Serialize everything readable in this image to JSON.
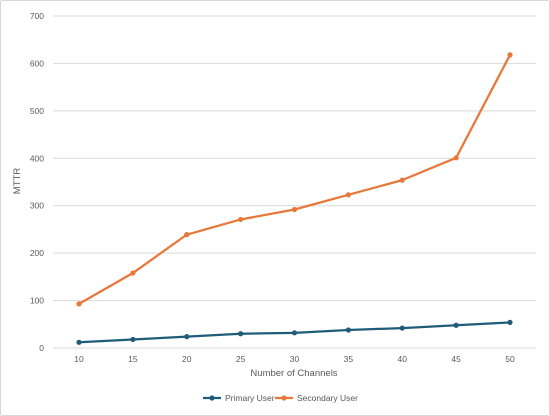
{
  "chart_data": {
    "type": "line",
    "title": "",
    "xlabel": "Number of Channels",
    "ylabel": "MTTR",
    "categories": [
      "10",
      "15",
      "20",
      "25",
      "30",
      "35",
      "40",
      "45",
      "50"
    ],
    "ylim": [
      0,
      700
    ],
    "yticks": [
      "0",
      "100",
      "200",
      "300",
      "400",
      "500",
      "600",
      "700"
    ],
    "grid": true,
    "legend_position": "bottom",
    "series": [
      {
        "name": "Primary User",
        "color": "#1f5c7a",
        "values": [
          12,
          18,
          24,
          30,
          32,
          38,
          42,
          48,
          54
        ]
      },
      {
        "name": "Secondary User",
        "color": "#e8773a",
        "values": [
          93,
          158,
          239,
          271,
          292,
          323,
          354,
          401,
          618
        ]
      }
    ]
  }
}
